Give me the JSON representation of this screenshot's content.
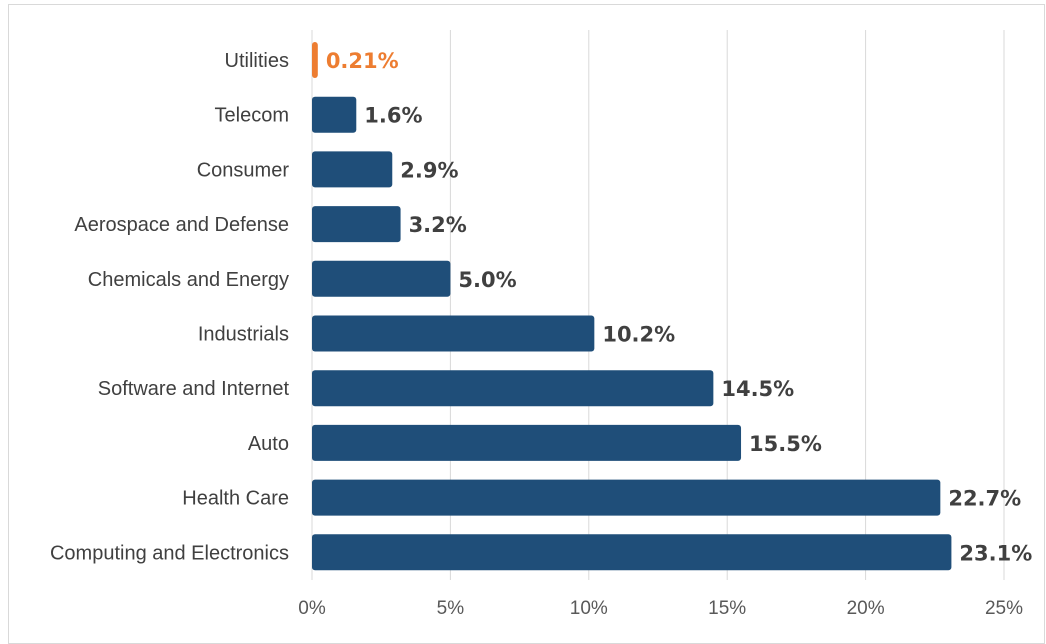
{
  "chart_data": {
    "type": "bar",
    "orientation": "horizontal",
    "categories": [
      "Utilities",
      "Telecom",
      "Consumer",
      "Aerospace and Defense",
      "Chemicals and Energy",
      "Industrials",
      "Software and Internet",
      "Auto",
      "Health Care",
      "Computing and Electronics"
    ],
    "values": [
      0.21,
      1.6,
      2.9,
      3.2,
      5.0,
      10.2,
      14.5,
      15.5,
      22.7,
      23.1
    ],
    "value_labels": [
      "0.21%",
      "1.6%",
      "2.9%",
      "3.2%",
      "5.0%",
      "10.2%",
      "14.5%",
      "15.5%",
      "22.7%",
      "23.1%"
    ],
    "highlight_index": 0,
    "colors": {
      "bar": "#1f4e79",
      "highlight": "#ed7d31",
      "label": "#404040",
      "grid": "#d9d9d9"
    },
    "xlim": [
      0,
      25
    ],
    "x_ticks": [
      0,
      5,
      10,
      15,
      20,
      25
    ],
    "x_tick_labels": [
      "0%",
      "5%",
      "10%",
      "15%",
      "20%",
      "25%"
    ],
    "grid": true,
    "legend": "none",
    "title": "",
    "xlabel": "",
    "ylabel": ""
  }
}
